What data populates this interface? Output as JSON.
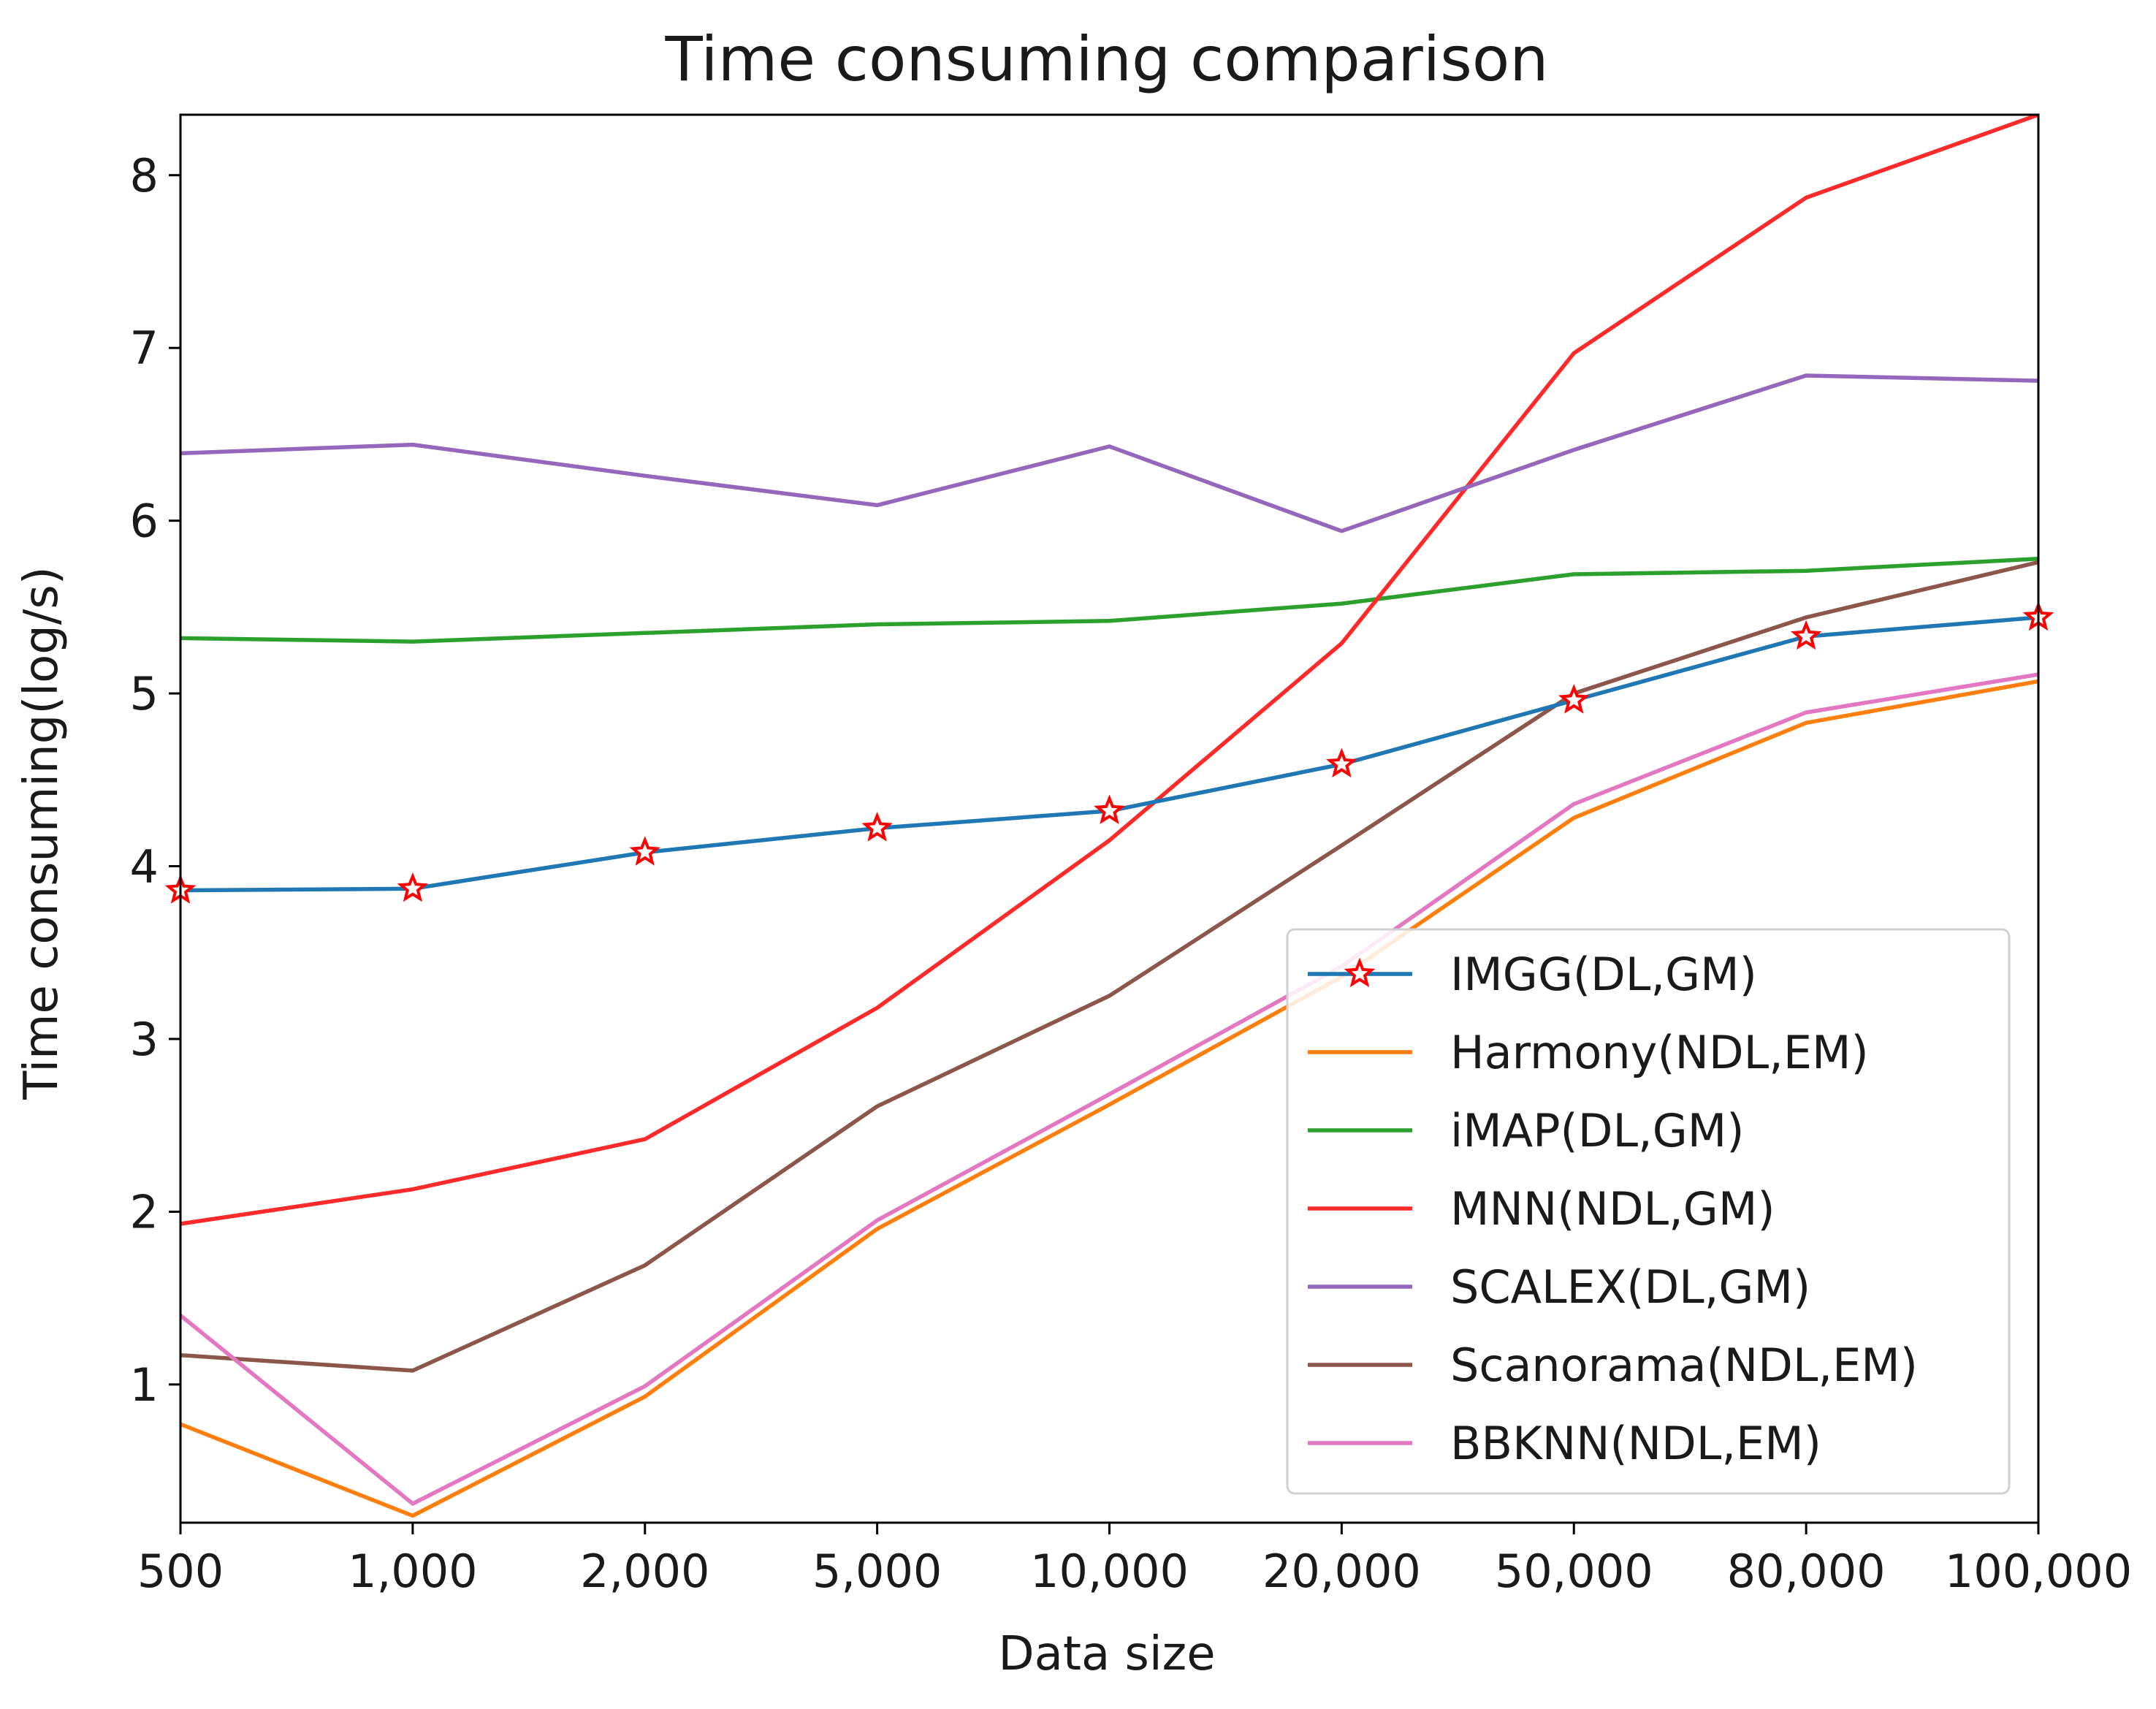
{
  "chart_data": {
    "type": "line",
    "title": "Time consuming comparison",
    "xlabel": "Data size",
    "ylabel": "Time consuming(log/s)",
    "categories": [
      "500",
      "1,000",
      "2,000",
      "5,000",
      "10,000",
      "20,000",
      "50,000",
      "80,000",
      "100,000"
    ],
    "ylim": [
      0.2,
      8.35
    ],
    "yticks": [
      1,
      2,
      3,
      4,
      5,
      6,
      7,
      8
    ],
    "grid": false,
    "legend_position": "lower-right",
    "series": [
      {
        "name": "IMGG(DL,GM)",
        "color": "#1f77b4",
        "marker": "star",
        "values": [
          3.86,
          3.87,
          4.08,
          4.22,
          4.32,
          4.59,
          4.96,
          5.33,
          5.44
        ]
      },
      {
        "name": "Harmony(NDL,EM)",
        "color": "#ff7f0e",
        "marker": "none",
        "values": [
          0.77,
          0.24,
          0.93,
          1.9,
          2.62,
          3.36,
          4.28,
          4.83,
          5.07
        ]
      },
      {
        "name": "iMAP(DL,GM)",
        "color": "#2ca02c",
        "marker": "none",
        "values": [
          5.32,
          5.3,
          5.35,
          5.4,
          5.42,
          5.52,
          5.69,
          5.71,
          5.78
        ]
      },
      {
        "name": "MNN(NDL,GM)",
        "color": "#ff2a2a",
        "marker": "none",
        "values": [
          1.93,
          2.13,
          2.42,
          3.18,
          4.15,
          5.29,
          6.97,
          7.87,
          8.35
        ]
      },
      {
        "name": "SCALEX(DL,GM)",
        "color": "#9467bd",
        "marker": "none",
        "values": [
          6.39,
          6.44,
          6.26,
          6.09,
          6.43,
          5.94,
          6.41,
          6.84,
          6.81
        ]
      },
      {
        "name": "Scanorama(NDL,EM)",
        "color": "#8c564b",
        "marker": "none",
        "values": [
          1.17,
          1.08,
          1.69,
          2.61,
          3.25,
          4.12,
          5.0,
          5.44,
          5.76
        ]
      },
      {
        "name": "BBKNN(NDL,EM)",
        "color": "#e377c2",
        "marker": "none",
        "values": [
          1.4,
          0.31,
          0.99,
          1.95,
          2.68,
          3.42,
          4.36,
          4.89,
          5.11
        ]
      }
    ]
  }
}
